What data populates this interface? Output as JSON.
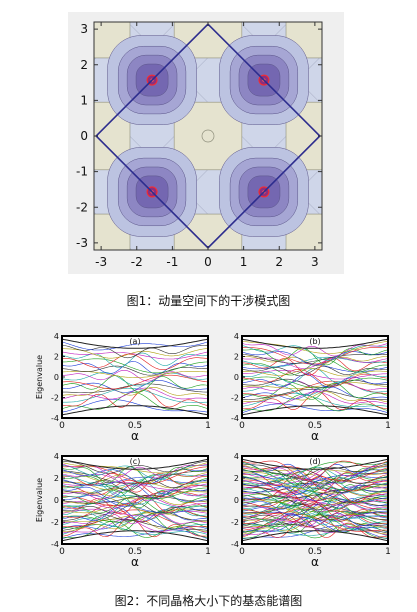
{
  "figure1": {
    "caption": "图1：动量空间下的干涉模式图",
    "chart_data": {
      "type": "heatmap",
      "title": "",
      "xlabel": "",
      "ylabel": "",
      "xlim": [
        -3.2,
        3.2
      ],
      "ylim": [
        -3.2,
        3.2
      ],
      "xticks": [
        "-3",
        "-2",
        "-1",
        "0",
        "1",
        "2",
        "3"
      ],
      "yticks": [
        "3",
        "2",
        "1",
        "0",
        "-1",
        "-2",
        "-3"
      ],
      "peaks": [
        [
          -1.57,
          1.57
        ],
        [
          1.57,
          1.57
        ],
        [
          -1.57,
          -1.57
        ],
        [
          1.57,
          -1.57
        ]
      ],
      "brillouin_zone": [
        [
          0,
          3.14
        ],
        [
          3.14,
          0
        ],
        [
          0,
          -3.14
        ],
        [
          -3.14,
          0
        ]
      ],
      "colors": {
        "background": "#e5e3cf",
        "level1": "#cfd6e9",
        "level2": "#bcc3e1",
        "level3": "#a6a6d4",
        "level4": "#8d86c3",
        "level5": "#7467b1",
        "peak": "#8b2f7e",
        "peak_ring": "#ff2a2a",
        "zone_line": "#2d2d8e"
      }
    }
  },
  "figure2": {
    "caption": "图2：不同晶格大小下的基态能谱图",
    "chart_data": [
      {
        "type": "line",
        "label": "(a)",
        "xlabel": "α",
        "ylabel": "Eigenvalue",
        "xlim": [
          0,
          1
        ],
        "ylim": [
          -4,
          4
        ],
        "xticks": [
          "0",
          "0.5",
          "1"
        ],
        "yticks": [
          "4",
          "2",
          "0",
          "-2",
          "-4"
        ],
        "num_lines": 22
      },
      {
        "type": "line",
        "label": "(b)",
        "xlabel": "α",
        "ylabel": "",
        "xlim": [
          0,
          1
        ],
        "ylim": [
          -4,
          4
        ],
        "xticks": [
          "0",
          "0.5",
          "1"
        ],
        "yticks": [
          "4",
          "2",
          "0",
          "-2",
          "-4"
        ],
        "num_lines": 34
      },
      {
        "type": "line",
        "label": "(c)",
        "xlabel": "α",
        "ylabel": "Eigenvalue",
        "xlim": [
          0,
          1
        ],
        "ylim": [
          -4,
          4
        ],
        "xticks": [
          "0",
          "0.5",
          "1"
        ],
        "yticks": [
          "4",
          "2",
          "0",
          "-2",
          "-4"
        ],
        "num_lines": 56
      },
      {
        "type": "line",
        "label": "(d)",
        "xlabel": "α",
        "ylabel": "",
        "xlim": [
          0,
          1
        ],
        "ylim": [
          -4,
          4
        ],
        "xticks": [
          "0",
          "0.5",
          "1"
        ],
        "yticks": [
          "4",
          "2",
          "0",
          "-2",
          "-4"
        ],
        "num_lines": 80
      }
    ],
    "palette": [
      "#1f3fd8",
      "#1fa01f",
      "#e02020",
      "#18a6a6",
      "#c020c0",
      "#b0a010",
      "#333333"
    ]
  }
}
